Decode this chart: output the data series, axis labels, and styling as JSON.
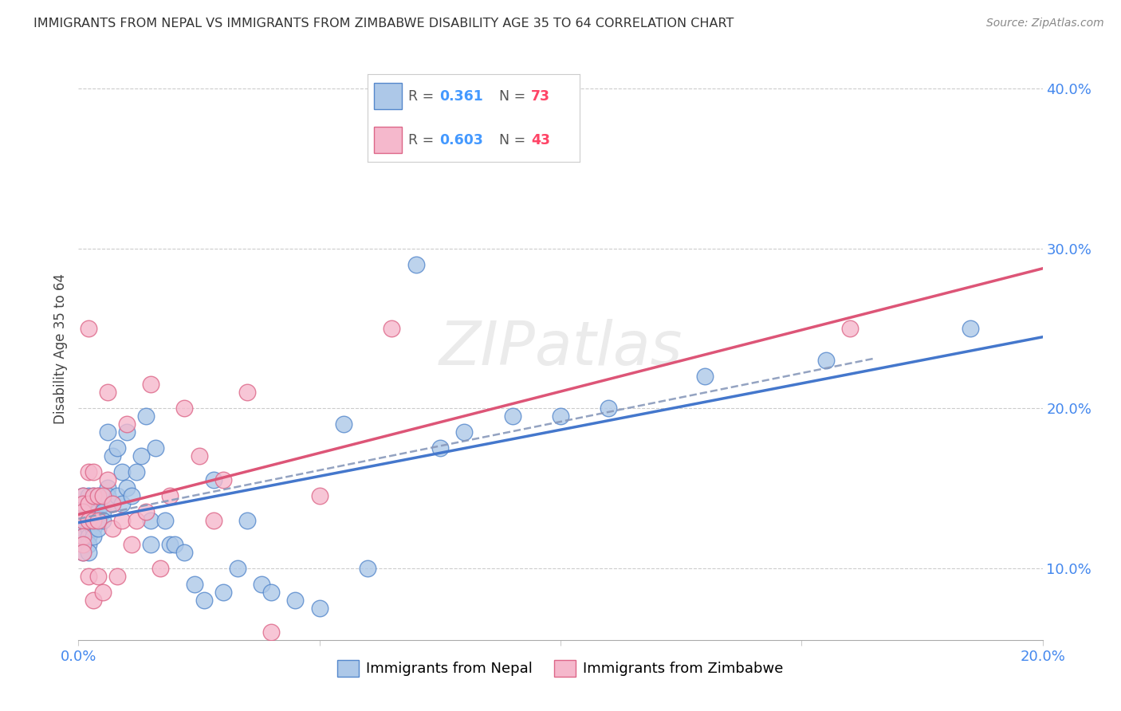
{
  "title": "IMMIGRANTS FROM NEPAL VS IMMIGRANTS FROM ZIMBABWE DISABILITY AGE 35 TO 64 CORRELATION CHART",
  "source": "Source: ZipAtlas.com",
  "ylabel": "Disability Age 35 to 64",
  "x_min": 0.0,
  "x_max": 0.2,
  "y_min": 0.055,
  "y_max": 0.42,
  "nepal_R": 0.361,
  "nepal_N": 73,
  "zimbabwe_R": 0.603,
  "zimbabwe_N": 43,
  "nepal_color": "#adc8e8",
  "zimbabwe_color": "#f5b8cc",
  "nepal_edge_color": "#5588cc",
  "zimbabwe_edge_color": "#dd6688",
  "nepal_line_color": "#4477cc",
  "zimbabwe_line_color": "#dd5577",
  "overall_line_color": "#8899bb",
  "legend_r_color": "#4499ff",
  "legend_n_color": "#ff4466",
  "background_color": "#ffffff",
  "grid_color": "#cccccc",
  "nepal_x": [
    0.001,
    0.001,
    0.001,
    0.001,
    0.001,
    0.001,
    0.001,
    0.001,
    0.002,
    0.002,
    0.002,
    0.002,
    0.002,
    0.002,
    0.002,
    0.002,
    0.003,
    0.003,
    0.003,
    0.003,
    0.003,
    0.003,
    0.004,
    0.004,
    0.004,
    0.004,
    0.004,
    0.005,
    0.005,
    0.005,
    0.006,
    0.006,
    0.006,
    0.007,
    0.007,
    0.008,
    0.008,
    0.009,
    0.009,
    0.01,
    0.01,
    0.011,
    0.012,
    0.013,
    0.014,
    0.015,
    0.015,
    0.016,
    0.018,
    0.019,
    0.02,
    0.022,
    0.024,
    0.026,
    0.028,
    0.03,
    0.033,
    0.035,
    0.038,
    0.04,
    0.045,
    0.05,
    0.055,
    0.06,
    0.07,
    0.075,
    0.08,
    0.09,
    0.1,
    0.11,
    0.13,
    0.155,
    0.185
  ],
  "nepal_y": [
    0.145,
    0.14,
    0.135,
    0.13,
    0.125,
    0.12,
    0.115,
    0.11,
    0.145,
    0.14,
    0.135,
    0.13,
    0.125,
    0.12,
    0.115,
    0.11,
    0.145,
    0.14,
    0.135,
    0.13,
    0.125,
    0.12,
    0.145,
    0.14,
    0.135,
    0.13,
    0.125,
    0.14,
    0.135,
    0.13,
    0.185,
    0.15,
    0.145,
    0.17,
    0.14,
    0.175,
    0.145,
    0.16,
    0.14,
    0.185,
    0.15,
    0.145,
    0.16,
    0.17,
    0.195,
    0.13,
    0.115,
    0.175,
    0.13,
    0.115,
    0.115,
    0.11,
    0.09,
    0.08,
    0.155,
    0.085,
    0.1,
    0.13,
    0.09,
    0.085,
    0.08,
    0.075,
    0.19,
    0.1,
    0.29,
    0.175,
    0.185,
    0.195,
    0.195,
    0.2,
    0.22,
    0.23,
    0.25
  ],
  "zimbabwe_x": [
    0.001,
    0.001,
    0.001,
    0.001,
    0.001,
    0.001,
    0.001,
    0.002,
    0.002,
    0.002,
    0.002,
    0.002,
    0.003,
    0.003,
    0.003,
    0.003,
    0.004,
    0.004,
    0.004,
    0.005,
    0.005,
    0.006,
    0.006,
    0.007,
    0.007,
    0.008,
    0.009,
    0.01,
    0.011,
    0.012,
    0.014,
    0.015,
    0.017,
    0.019,
    0.022,
    0.025,
    0.028,
    0.03,
    0.035,
    0.04,
    0.05,
    0.065,
    0.16
  ],
  "zimbabwe_y": [
    0.145,
    0.14,
    0.135,
    0.13,
    0.12,
    0.115,
    0.11,
    0.25,
    0.16,
    0.14,
    0.13,
    0.095,
    0.16,
    0.145,
    0.13,
    0.08,
    0.145,
    0.13,
    0.095,
    0.145,
    0.085,
    0.21,
    0.155,
    0.14,
    0.125,
    0.095,
    0.13,
    0.19,
    0.115,
    0.13,
    0.135,
    0.215,
    0.1,
    0.145,
    0.2,
    0.17,
    0.13,
    0.155,
    0.21,
    0.06,
    0.145,
    0.25,
    0.25
  ]
}
